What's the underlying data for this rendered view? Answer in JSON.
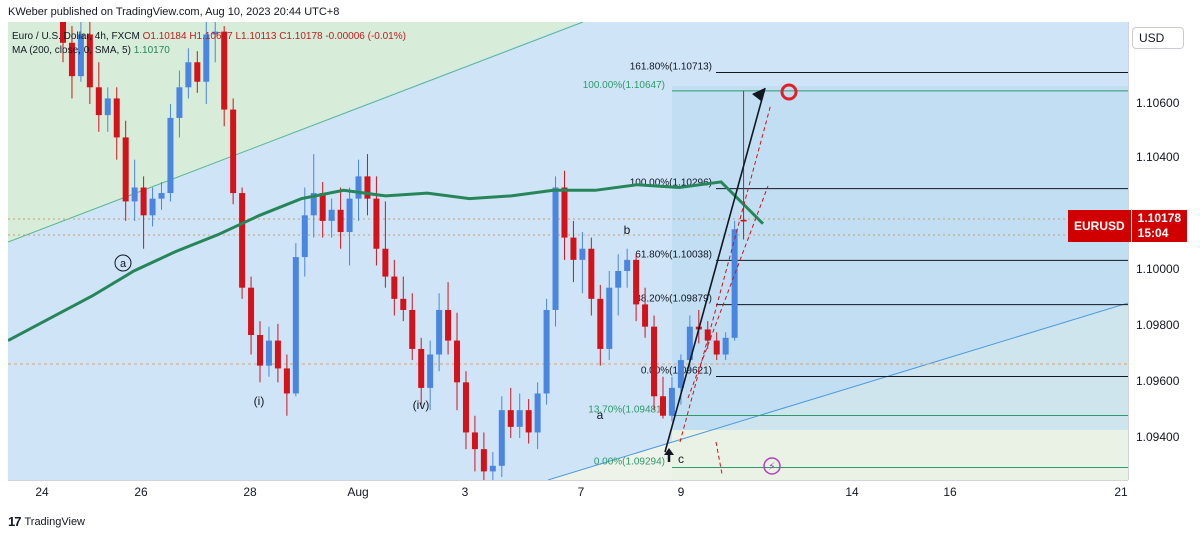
{
  "header": {
    "published": "KWeber published on TradingView.com, Aug 10, 2023 20:44 UTC+8"
  },
  "legend": {
    "line1_symbol": "Euro / U.S. Dollar, 4h, FXCM",
    "line1_ohlc": "O1.10184 H1.10647 L1.10113 C1.10178 -0.00006 (-0.01%)",
    "line2_ma": "MA (200, close, 0, SMA, 5)",
    "line2_value": "1.10170"
  },
  "price_axis": {
    "currency": "USD",
    "labels": [
      "1.10600",
      "1.10400",
      "1.10000",
      "1.09800",
      "1.09600",
      "1.09400"
    ],
    "badge_symbol": "EURUSD",
    "badge_price": "1.10178",
    "badge_countdown": "15:04"
  },
  "time_axis": {
    "labels": [
      "24",
      "26",
      "28",
      "Aug",
      "3",
      "7",
      "9",
      "14",
      "16",
      "21"
    ]
  },
  "fib_right": [
    {
      "text": "161.80%(1.10713)",
      "price": 1.10713
    },
    {
      "text": "100.00%(1.10296)",
      "price": 1.10296
    },
    {
      "text": "61.80%(1.10038)",
      "price": 1.10038
    },
    {
      "text": "38.20%(1.09879)",
      "price": 1.09879
    },
    {
      "text": "0.00%(1.09621)",
      "price": 1.09621
    }
  ],
  "fib_green": [
    {
      "text": "100.00%(1.10647)",
      "price": 1.10647
    },
    {
      "text": "13.70%(1.09481)",
      "price": 1.09481
    },
    {
      "text": "0.00%(1.09294)",
      "price": 1.09294
    }
  ],
  "wave_labels": {
    "a_circle": "a",
    "i": "(i)",
    "iv": "(iv)",
    "a": "a",
    "b": "b",
    "c": "c"
  },
  "footer": {
    "brand": "TradingView"
  },
  "colors": {
    "up": "#4a86e0",
    "down": "#d3121a",
    "ma": "#26865a",
    "fib_black": "#131722",
    "fib_green": "#2e9a6a",
    "badge": "#d10000"
  },
  "chart_data": {
    "type": "candlestick",
    "symbol": "EURUSD",
    "timeframe": "4h",
    "ylim": [
      1.0925,
      1.1078
    ],
    "x_ticks": [
      "24",
      "26",
      "28",
      "Aug",
      "3",
      "7",
      "9",
      "14",
      "16",
      "21"
    ],
    "candles": [
      [
        1.1108,
        1.1115,
        1.1075,
        1.1082
      ],
      [
        1.1082,
        1.1088,
        1.1062,
        1.107
      ],
      [
        1.107,
        1.109,
        1.1068,
        1.1085
      ],
      [
        1.1085,
        1.1092,
        1.106,
        1.1066
      ],
      [
        1.1066,
        1.1075,
        1.105,
        1.1056
      ],
      [
        1.1056,
        1.1066,
        1.105,
        1.1062
      ],
      [
        1.1062,
        1.1066,
        1.104,
        1.1048
      ],
      [
        1.1048,
        1.1054,
        1.1018,
        1.1025
      ],
      [
        1.1025,
        1.104,
        1.1018,
        1.103
      ],
      [
        1.103,
        1.1034,
        1.1008,
        1.102
      ],
      [
        1.102,
        1.103,
        1.1016,
        1.1026
      ],
      [
        1.1026,
        1.1032,
        1.1022,
        1.1028
      ],
      [
        1.1028,
        1.106,
        1.1025,
        1.1055
      ],
      [
        1.1055,
        1.1072,
        1.1048,
        1.1066
      ],
      [
        1.1066,
        1.108,
        1.1062,
        1.1075
      ],
      [
        1.1075,
        1.1079,
        1.1064,
        1.1068
      ],
      [
        1.1068,
        1.109,
        1.106,
        1.1085
      ],
      [
        1.1085,
        1.1092,
        1.1075,
        1.1086
      ],
      [
        1.1086,
        1.1088,
        1.1052,
        1.1058
      ],
      [
        1.1058,
        1.1062,
        1.1024,
        1.1028
      ],
      [
        1.1028,
        1.103,
        1.099,
        1.0994
      ],
      [
        1.0994,
        1.0998,
        1.097,
        1.0977
      ],
      [
        1.0977,
        1.0982,
        1.096,
        1.0966
      ],
      [
        1.0966,
        1.098,
        1.0962,
        1.0975
      ],
      [
        1.0975,
        1.0981,
        1.096,
        1.0965
      ],
      [
        1.0965,
        1.097,
        1.0948,
        1.0956
      ],
      [
        1.0956,
        1.101,
        1.0955,
        1.1005
      ],
      [
        1.1005,
        1.103,
        1.0998,
        1.102
      ],
      [
        1.102,
        1.1042,
        1.1012,
        1.1028
      ],
      [
        1.1028,
        1.1032,
        1.1012,
        1.1018
      ],
      [
        1.1018,
        1.1026,
        1.1012,
        1.1022
      ],
      [
        1.1022,
        1.103,
        1.1008,
        1.1014
      ],
      [
        1.1014,
        1.103,
        1.1002,
        1.1026
      ],
      [
        1.1026,
        1.104,
        1.1018,
        1.1034
      ],
      [
        1.1034,
        1.1042,
        1.102,
        1.1026
      ],
      [
        1.1026,
        1.1034,
        1.1002,
        1.1008
      ],
      [
        1.1008,
        1.1025,
        1.0994,
        1.0998
      ],
      [
        1.0998,
        1.1004,
        1.0984,
        1.099
      ],
      [
        1.099,
        1.0998,
        1.0982,
        1.0986
      ],
      [
        1.0986,
        1.0992,
        1.0968,
        1.0972
      ],
      [
        1.0972,
        1.0976,
        1.0952,
        1.0958
      ],
      [
        1.0958,
        1.0975,
        1.095,
        1.097
      ],
      [
        1.097,
        1.0992,
        1.0964,
        1.0986
      ],
      [
        1.0986,
        1.0996,
        1.097,
        1.0975
      ],
      [
        1.0975,
        1.0985,
        1.095,
        1.096
      ],
      [
        1.096,
        1.0964,
        1.0936,
        1.0942
      ],
      [
        1.0942,
        1.0948,
        1.0928,
        1.0936
      ],
      [
        1.0936,
        1.0942,
        1.092,
        1.0928
      ],
      [
        1.0928,
        1.0935,
        1.0922,
        1.093
      ],
      [
        1.093,
        1.0955,
        1.0926,
        1.095
      ],
      [
        1.095,
        1.0958,
        1.094,
        1.0944
      ],
      [
        1.0944,
        1.0956,
        1.094,
        1.095
      ],
      [
        1.095,
        1.0954,
        1.0938,
        1.0942
      ],
      [
        1.0942,
        1.096,
        1.0936,
        1.0956
      ],
      [
        1.0956,
        1.099,
        1.0952,
        1.0986
      ],
      [
        1.0986,
        1.1034,
        1.098,
        1.103
      ],
      [
        1.103,
        1.1036,
        1.1004,
        1.1012
      ],
      [
        1.1012,
        1.1018,
        1.0996,
        1.1004
      ],
      [
        1.1004,
        1.1014,
        1.0992,
        1.1008
      ],
      [
        1.1008,
        1.1012,
        1.0984,
        1.099
      ],
      [
        1.099,
        1.0995,
        1.0966,
        1.0972
      ],
      [
        1.0972,
        1.1,
        1.0968,
        1.0994
      ],
      [
        1.0994,
        1.1006,
        1.0984,
        1.1
      ],
      [
        1.1,
        1.1008,
        1.0994,
        1.1004
      ],
      [
        1.1004,
        1.1006,
        1.0982,
        1.0988
      ],
      [
        1.0988,
        1.0994,
        1.0976,
        1.098
      ],
      [
        1.098,
        1.0984,
        1.095,
        1.0955
      ],
      [
        1.0955,
        1.0962,
        1.0947,
        1.0948
      ],
      [
        1.0948,
        1.0962,
        1.0946,
        1.0958
      ],
      [
        1.0958,
        1.097,
        1.0952,
        1.0968
      ],
      [
        1.0968,
        1.0984,
        1.0964,
        1.098
      ],
      [
        1.098,
        1.0986,
        1.0974,
        1.0979
      ],
      [
        1.0979,
        1.0982,
        1.0972,
        1.0975
      ],
      [
        1.0975,
        1.0978,
        1.0968,
        1.097
      ],
      [
        1.097,
        1.0978,
        1.0968,
        1.0976
      ],
      [
        1.0976,
        1.1018,
        1.0975,
        1.1015
      ],
      [
        1.10184,
        1.10647,
        1.10113,
        1.10178
      ]
    ],
    "ma_200": [
      1.0975,
      1.0983,
      1.0991,
      1.1,
      1.1007,
      1.1013,
      1.102,
      1.1026,
      1.1029,
      1.1027,
      1.1028,
      1.1026,
      1.1027,
      1.1029,
      1.1029,
      1.1031,
      1.103,
      1.1032,
      1.1017
    ],
    "annotations": [
      "a",
      "(i)",
      "(iv)",
      "a",
      "b",
      "c"
    ]
  }
}
